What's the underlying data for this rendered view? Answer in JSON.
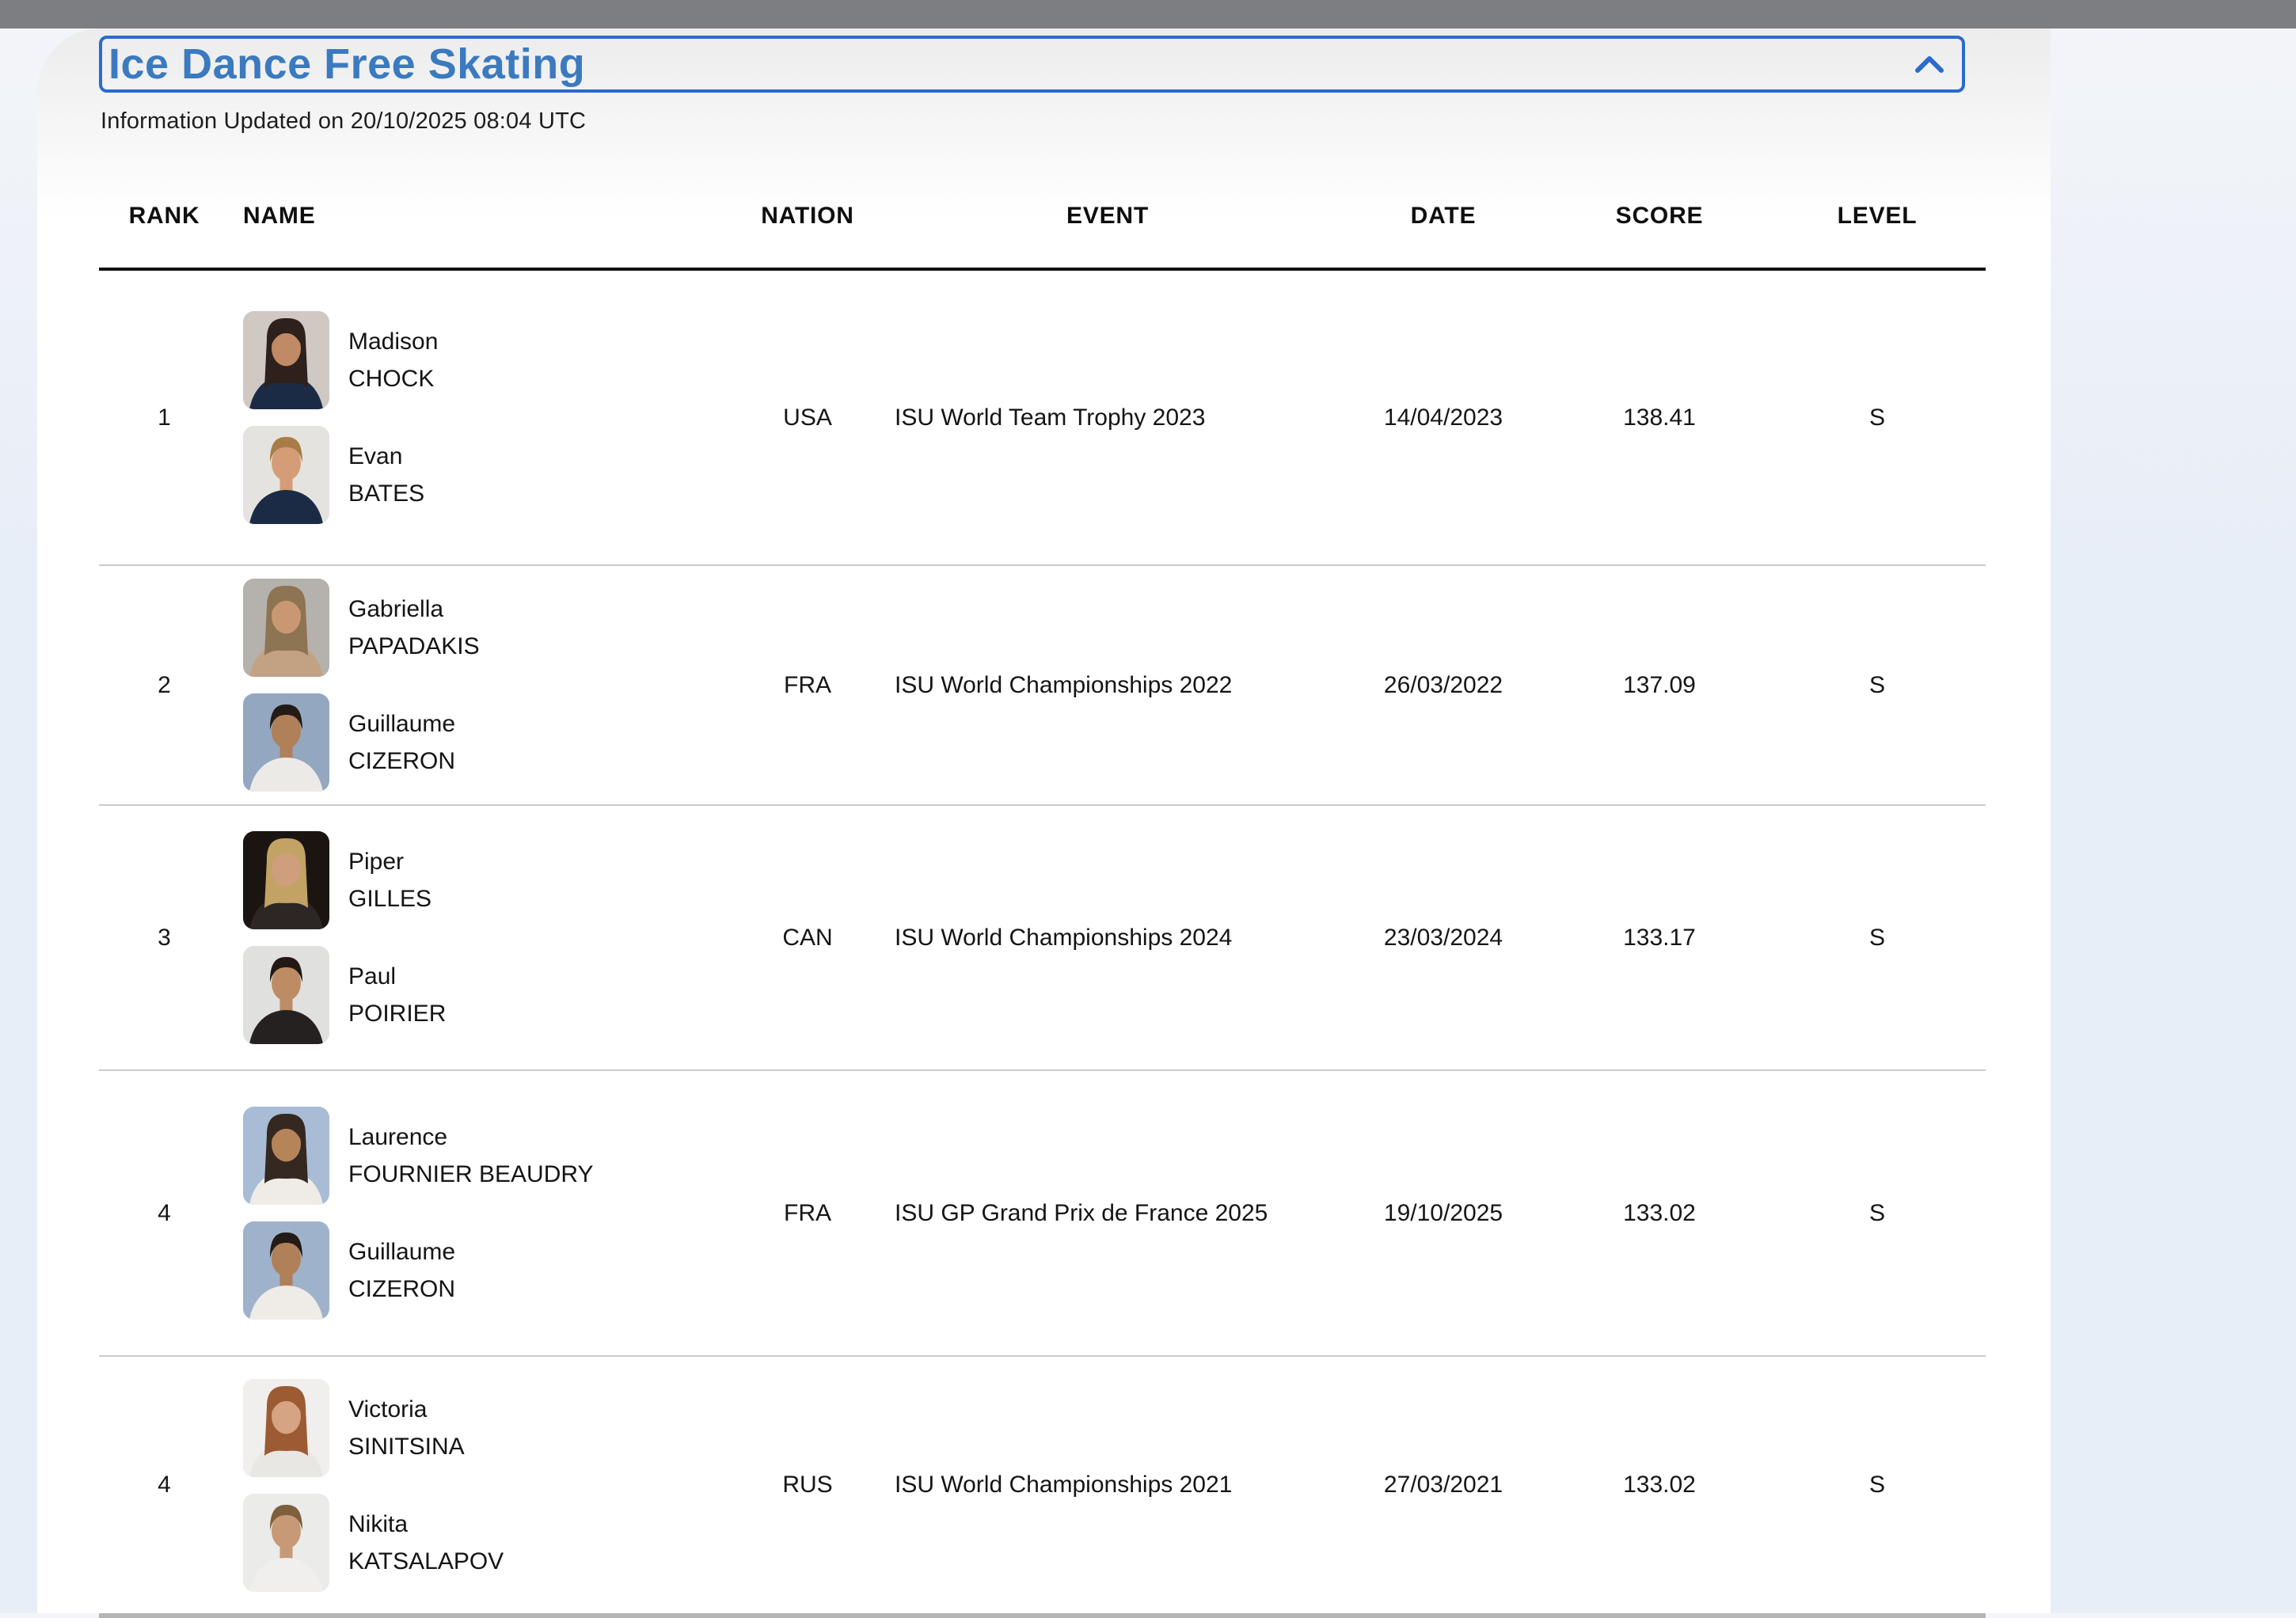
{
  "page": {
    "background_color": "#e8eef7",
    "topbar_color": "#7d7e81"
  },
  "panel": {
    "title": "Ice Dance Free Skating",
    "title_color": "#3b7abf",
    "border_color": "#2b6acf",
    "collapse_icon": "chevron-up-icon",
    "updated_text": "Information Updated on 20/10/2025 08:04 UTC"
  },
  "table": {
    "columns": [
      "RANK",
      "NAME",
      "NATION",
      "EVENT",
      "DATE",
      "SCORE",
      "LEVEL"
    ],
    "rows": [
      {
        "rank": "1",
        "skaters": [
          {
            "first": "Madison",
            "last": "CHOCK",
            "avatar": {
              "bg": "#cfc8c3",
              "hair": "#2e201a",
              "skin": "#c08a66",
              "shirt": "#1c2b45",
              "style": "long"
            }
          },
          {
            "first": "Evan",
            "last": "BATES",
            "avatar": {
              "bg": "#e5e3df",
              "hair": "#a87c46",
              "skin": "#d49d77",
              "shirt": "#1c2b45",
              "style": "short"
            }
          }
        ],
        "nation": "USA",
        "event": "ISU World Team Trophy 2023",
        "date": "14/04/2023",
        "score": "138.41",
        "level": "S"
      },
      {
        "rank": "2",
        "skaters": [
          {
            "first": "Gabriella",
            "last": "PAPADAKIS",
            "avatar": {
              "bg": "#b5b2ad",
              "hair": "#8d7452",
              "skin": "#c99872",
              "shirt": "#c3a183",
              "style": "long"
            }
          },
          {
            "first": "Guillaume",
            "last": "CIZERON",
            "avatar": {
              "bg": "#93a7c0",
              "hair": "#241a16",
              "skin": "#b08058",
              "shirt": "#eceae6",
              "style": "short"
            }
          }
        ],
        "nation": "FRA",
        "event": "ISU World Championships 2022",
        "date": "26/03/2022",
        "score": "137.09",
        "level": "S"
      },
      {
        "rank": "3",
        "skaters": [
          {
            "first": "Piper",
            "last": "GILLES",
            "avatar": {
              "bg": "#1b1512",
              "hair": "#c3a265",
              "skin": "#cf9f7d",
              "shirt": "#2c2625",
              "style": "long"
            }
          },
          {
            "first": "Paul",
            "last": "POIRIER",
            "avatar": {
              "bg": "#e0e0de",
              "hair": "#231813",
              "skin": "#bd8c64",
              "shirt": "#252120",
              "style": "short"
            }
          }
        ],
        "nation": "CAN",
        "event": "ISU World Championships 2024",
        "date": "23/03/2024",
        "score": "133.17",
        "level": "S"
      },
      {
        "rank": "4",
        "skaters": [
          {
            "first": "Laurence",
            "last": "FOURNIER BEAUDRY",
            "avatar": {
              "bg": "#a8bcd6",
              "hair": "#352821",
              "skin": "#b58459",
              "shirt": "#efece7",
              "style": "long"
            }
          },
          {
            "first": "Guillaume",
            "last": "CIZERON",
            "avatar": {
              "bg": "#9fb2cb",
              "hair": "#241a16",
              "skin": "#b08058",
              "shirt": "#efece7",
              "style": "short"
            }
          }
        ],
        "nation": "FRA",
        "event": "ISU GP Grand Prix de France 2025",
        "date": "19/10/2025",
        "score": "133.02",
        "level": "S"
      },
      {
        "rank": "4",
        "skaters": [
          {
            "first": "Victoria",
            "last": "SINITSINA",
            "avatar": {
              "bg": "#f1efed",
              "hair": "#9c5b32",
              "skin": "#d6a383",
              "shirt": "#e9e7e4",
              "style": "long"
            }
          },
          {
            "first": "Nikita",
            "last": "KATSALAPOV",
            "avatar": {
              "bg": "#ebebe9",
              "hair": "#7d5f3c",
              "skin": "#c79976",
              "shirt": "#f0efed",
              "style": "short"
            }
          }
        ],
        "nation": "RUS",
        "event": "ISU World Championships 2021",
        "date": "27/03/2021",
        "score": "133.02",
        "level": "S"
      }
    ]
  }
}
